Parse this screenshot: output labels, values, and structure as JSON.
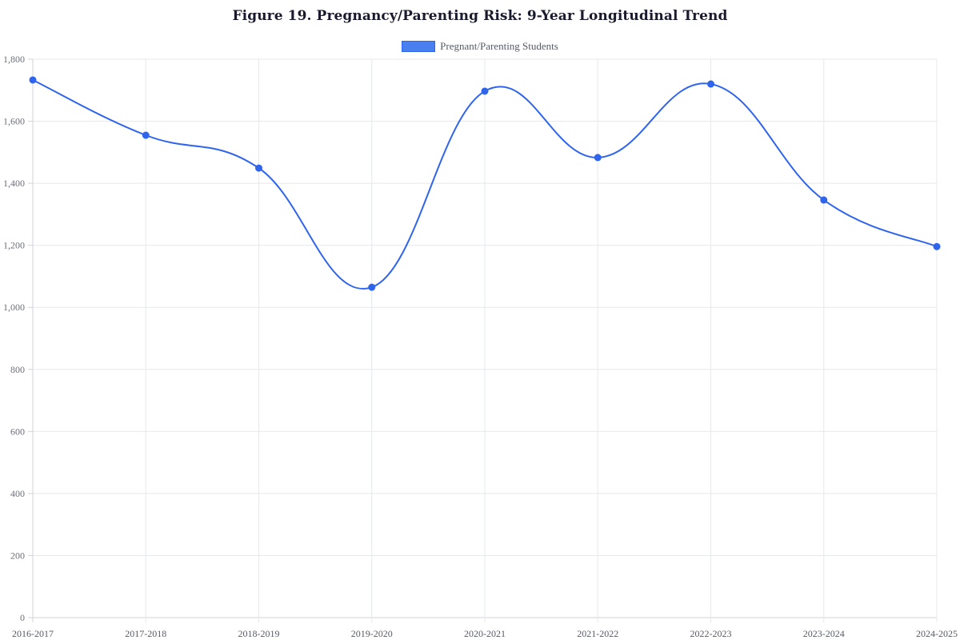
{
  "title": "Figure 19. Pregnancy/Parenting Risk: 9-Year Longitudinal Trend",
  "legend": {
    "label": "Pregnant/Parenting Students",
    "swatch_fill": "#4a7ff0",
    "swatch_border": "#2f64ec"
  },
  "colors": {
    "line": "#2f64ec",
    "point": "#2f64ec",
    "grid": "#e6e8ec",
    "axis": "#cfd3da"
  },
  "chart_data": {
    "type": "line",
    "title": "Figure 19. Pregnancy/Parenting Risk: 9-Year Longitudinal Trend",
    "xlabel": "",
    "ylabel": "",
    "categories": [
      "2016-2017",
      "2017-2018",
      "2018-2019",
      "2019-2020",
      "2020-2021",
      "2021-2022",
      "2022-2023",
      "2023-2024",
      "2024-2025"
    ],
    "series": [
      {
        "name": "Pregnant/Parenting Students",
        "values": [
          1733,
          1555,
          1449,
          1065,
          1697,
          1483,
          1720,
          1346,
          1196
        ]
      }
    ],
    "ylim": [
      0,
      1800
    ],
    "yticks": [
      0,
      200,
      400,
      600,
      800,
      1000,
      1200,
      1400,
      1600,
      1800
    ],
    "ytick_labels": [
      "0",
      "200",
      "400",
      "600",
      "800",
      "1,000",
      "1,200",
      "1,400",
      "1,600",
      "1,800"
    ],
    "grid": true,
    "legend_position": "top-center",
    "smooth": true
  }
}
